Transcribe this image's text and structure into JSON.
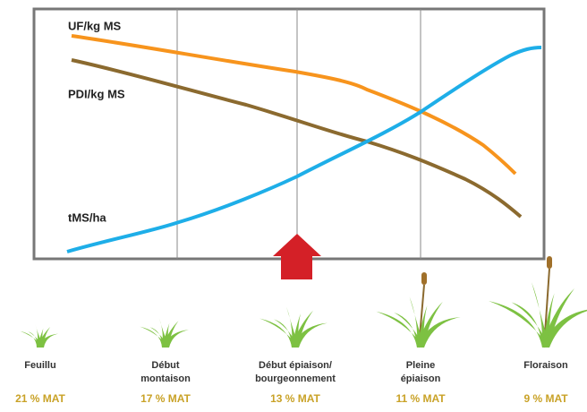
{
  "curves": [
    {
      "label": "UF/kg MS"
    },
    {
      "label": "PDI/kg MS"
    },
    {
      "label": "tMS/ha"
    }
  ],
  "stages": [
    {
      "name": [
        "Feuillu"
      ],
      "mat": "21 % MAT"
    },
    {
      "name": [
        "Début",
        "montaison"
      ],
      "mat": "17 % MAT"
    },
    {
      "name": [
        "Début épiaison/",
        "bourgeonnement"
      ],
      "mat": "13 % MAT"
    },
    {
      "name": [
        "Pleine",
        "épiaison"
      ],
      "mat": "11 % MAT"
    },
    {
      "name": [
        "Floraison"
      ],
      "mat": "9 % MAT"
    }
  ]
}
